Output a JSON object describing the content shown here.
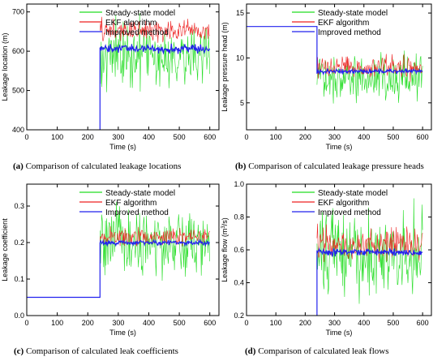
{
  "colors": {
    "steady": "#22dd22",
    "ekf": "#ee2222",
    "improved": "#2222ee",
    "axis": "#000000"
  },
  "captions": [
    {
      "label": "(a)",
      "text": " Comparison of calculated leakage locations"
    },
    {
      "label": "(b)",
      "text": " Comparison of calculated leakage pressure heads"
    },
    {
      "label": "(c)",
      "text": " Comparison of calculated leak coefficients"
    },
    {
      "label": "(d)",
      "text": " Comparison of calculated leak flows"
    }
  ],
  "chart_data": [
    {
      "type": "line",
      "xlabel": "Time (s)",
      "ylabel": "Leakage location (m)",
      "xlim": [
        0,
        630
      ],
      "ylim": [
        400,
        720
      ],
      "xticks": [
        0,
        100,
        200,
        300,
        400,
        500,
        600
      ],
      "yticks": [
        400,
        500,
        600,
        700
      ],
      "legend_position": "top-right",
      "series": [
        {
          "name": "Steady-state model",
          "key": "steady",
          "pre": null,
          "start_x": 240,
          "end_x": 600,
          "jump_from": null,
          "mean": 590,
          "noise": 38
        },
        {
          "name": "EKF algorithm",
          "key": "ekf",
          "pre": null,
          "start_x": 240,
          "end_x": 600,
          "jump_from": null,
          "mean": 652,
          "noise": 14
        },
        {
          "name": "Improved method",
          "key": "improved",
          "pre": null,
          "start_x": 240,
          "end_x": 600,
          "jump_from": 400,
          "mean": 606,
          "noise": 5
        }
      ]
    },
    {
      "type": "line",
      "xlabel": "Time (s)",
      "ylabel": "Leakage pressure head (m)",
      "xlim": [
        0,
        630
      ],
      "ylim": [
        2,
        16
      ],
      "xticks": [
        0,
        100,
        200,
        300,
        400,
        500,
        600
      ],
      "yticks": [
        5,
        10,
        15
      ],
      "legend_position": "top-right",
      "series": [
        {
          "name": "Steady-state model",
          "key": "steady",
          "pre": null,
          "start_x": 240,
          "end_x": 600,
          "jump_from": null,
          "mean": 8.0,
          "noise": 1.3
        },
        {
          "name": "EKF algorithm",
          "key": "ekf",
          "pre": null,
          "start_x": 240,
          "end_x": 600,
          "jump_from": null,
          "mean": 9.0,
          "noise": 0.6
        },
        {
          "name": "Improved method",
          "key": "improved",
          "pre": 13.5,
          "start_x": 240,
          "end_x": 600,
          "jump_from": 13.5,
          "mean": 8.5,
          "noise": 0.12
        }
      ]
    },
    {
      "type": "line",
      "xlabel": "Time (s)",
      "ylabel": "Leakage coefficient",
      "xlim": [
        0,
        630
      ],
      "ylim": [
        0.0,
        0.36
      ],
      "xticks": [
        0,
        100,
        200,
        300,
        400,
        500,
        600
      ],
      "yticks": [
        0.0,
        0.1,
        0.2,
        0.3
      ],
      "legend_position": "top-right",
      "series": [
        {
          "name": "Steady-state model",
          "key": "steady",
          "pre": null,
          "start_x": 240,
          "end_x": 600,
          "jump_from": null,
          "mean": 0.195,
          "noise": 0.045
        },
        {
          "name": "EKF algorithm",
          "key": "ekf",
          "pre": null,
          "start_x": 240,
          "end_x": 600,
          "jump_from": null,
          "mean": 0.215,
          "noise": 0.012
        },
        {
          "name": "Improved method",
          "key": "improved",
          "pre": 0.05,
          "start_x": 240,
          "end_x": 600,
          "jump_from": 0.05,
          "mean": 0.2,
          "noise": 0.003
        }
      ]
    },
    {
      "type": "line",
      "xlabel": "Time (s)",
      "ylabel": "Leakage flow (m3/s)",
      "xlim": [
        0,
        630
      ],
      "ylim": [
        0.2,
        1.0
      ],
      "xticks": [
        0,
        100,
        200,
        300,
        400,
        500,
        600
      ],
      "yticks": [
        0.2,
        0.4,
        0.6,
        0.8,
        1.0
      ],
      "legend_position": "top-right",
      "series": [
        {
          "name": "Steady-state model",
          "key": "steady",
          "pre": null,
          "start_x": 240,
          "end_x": 600,
          "jump_from": null,
          "mean": 0.58,
          "noise": 0.13
        },
        {
          "name": "EKF algorithm",
          "key": "ekf",
          "pre": null,
          "start_x": 240,
          "end_x": 600,
          "jump_from": null,
          "mean": 0.63,
          "noise": 0.05
        },
        {
          "name": "Improved method",
          "key": "improved",
          "pre": null,
          "start_x": 240,
          "end_x": 600,
          "jump_from": 0.2,
          "mean": 0.585,
          "noise": 0.01
        }
      ]
    }
  ]
}
